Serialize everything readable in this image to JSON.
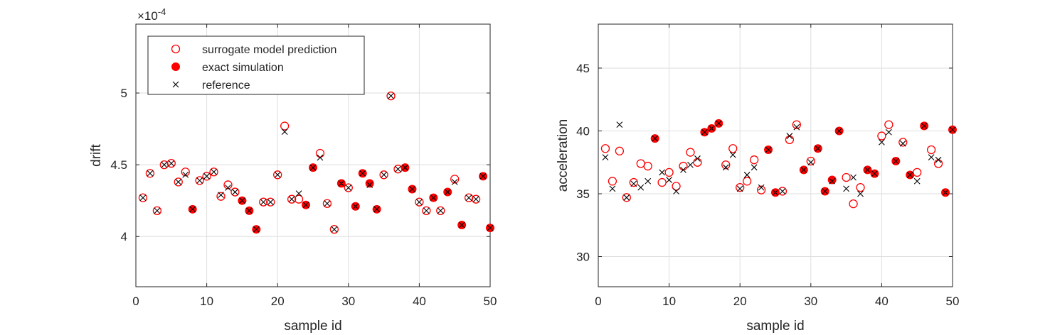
{
  "chart_data": [
    {
      "type": "scatter",
      "xlabel": "sample id",
      "ylabel": "drift",
      "exponent_label": "×10",
      "exponent_power": "-4",
      "xlim": [
        0,
        50
      ],
      "ylim": [
        3.65,
        5.48
      ],
      "xticks": [
        0,
        10,
        20,
        30,
        40,
        50
      ],
      "yticks": [
        4,
        4.5,
        5
      ],
      "ytick_labels": [
        "4",
        "4.5",
        "5"
      ],
      "grid": true,
      "legend_position": "top-left",
      "legend": [
        "surrogate model prediction",
        "exact simulation",
        "reference"
      ],
      "series": [
        {
          "name": "surrogate model prediction",
          "marker": "open-circle",
          "points": [
            [
              1,
              4.27
            ],
            [
              2,
              4.44
            ],
            [
              3,
              4.18
            ],
            [
              4,
              4.5
            ],
            [
              5,
              4.51
            ],
            [
              6,
              4.38
            ],
            [
              7,
              4.45
            ],
            [
              9,
              4.39
            ],
            [
              10,
              4.42
            ],
            [
              11,
              4.45
            ],
            [
              12,
              4.28
            ],
            [
              13,
              4.36
            ],
            [
              14,
              4.31
            ],
            [
              18,
              4.24
            ],
            [
              19,
              4.24
            ],
            [
              20,
              4.43
            ],
            [
              21,
              4.77
            ],
            [
              22,
              4.26
            ],
            [
              23,
              4.26
            ],
            [
              26,
              4.58
            ],
            [
              27,
              4.23
            ],
            [
              28,
              4.05
            ],
            [
              30,
              4.34
            ],
            [
              35,
              4.43
            ],
            [
              36,
              4.98
            ],
            [
              37,
              4.47
            ],
            [
              40,
              4.24
            ],
            [
              41,
              4.18
            ],
            [
              43,
              4.18
            ],
            [
              45,
              4.4
            ],
            [
              47,
              4.27
            ],
            [
              48,
              4.26
            ]
          ]
        },
        {
          "name": "exact simulation",
          "marker": "filled-circle",
          "points": [
            [
              8,
              4.19
            ],
            [
              15,
              4.25
            ],
            [
              16,
              4.18
            ],
            [
              17,
              4.05
            ],
            [
              24,
              4.22
            ],
            [
              25,
              4.48
            ],
            [
              29,
              4.37
            ],
            [
              31,
              4.21
            ],
            [
              32,
              4.44
            ],
            [
              33,
              4.37
            ],
            [
              34,
              4.19
            ],
            [
              38,
              4.48
            ],
            [
              39,
              4.33
            ],
            [
              42,
              4.27
            ],
            [
              44,
              4.31
            ],
            [
              46,
              4.08
            ],
            [
              49,
              4.42
            ],
            [
              50,
              4.06
            ]
          ]
        },
        {
          "name": "reference",
          "marker": "x",
          "points": [
            [
              1,
              4.27
            ],
            [
              2,
              4.44
            ],
            [
              3,
              4.18
            ],
            [
              4,
              4.5
            ],
            [
              5,
              4.51
            ],
            [
              6,
              4.38
            ],
            [
              7,
              4.43
            ],
            [
              8,
              4.19
            ],
            [
              9,
              4.39
            ],
            [
              10,
              4.42
            ],
            [
              11,
              4.45
            ],
            [
              12,
              4.29
            ],
            [
              13,
              4.34
            ],
            [
              14,
              4.31
            ],
            [
              15,
              4.25
            ],
            [
              16,
              4.18
            ],
            [
              17,
              4.05
            ],
            [
              18,
              4.24
            ],
            [
              19,
              4.24
            ],
            [
              20,
              4.43
            ],
            [
              21,
              4.73
            ],
            [
              22,
              4.26
            ],
            [
              23,
              4.3
            ],
            [
              24,
              4.22
            ],
            [
              25,
              4.48
            ],
            [
              26,
              4.55
            ],
            [
              27,
              4.23
            ],
            [
              28,
              4.05
            ],
            [
              29,
              4.37
            ],
            [
              30,
              4.34
            ],
            [
              31,
              4.21
            ],
            [
              32,
              4.44
            ],
            [
              33,
              4.36
            ],
            [
              34,
              4.19
            ],
            [
              35,
              4.43
            ],
            [
              36,
              4.98
            ],
            [
              37,
              4.47
            ],
            [
              38,
              4.48
            ],
            [
              39,
              4.33
            ],
            [
              40,
              4.24
            ],
            [
              41,
              4.18
            ],
            [
              42,
              4.27
            ],
            [
              43,
              4.18
            ],
            [
              44,
              4.31
            ],
            [
              45,
              4.38
            ],
            [
              46,
              4.08
            ],
            [
              47,
              4.27
            ],
            [
              48,
              4.26
            ],
            [
              49,
              4.42
            ],
            [
              50,
              4.06
            ]
          ]
        }
      ]
    },
    {
      "type": "scatter",
      "xlabel": "sample id",
      "ylabel": "acceleration",
      "xlim": [
        0,
        50
      ],
      "ylim": [
        27.6,
        48.5
      ],
      "xticks": [
        0,
        10,
        20,
        30,
        40,
        50
      ],
      "yticks": [
        30,
        35,
        40,
        45
      ],
      "ytick_labels": [
        "30",
        "35",
        "40",
        "45"
      ],
      "grid": true,
      "series": [
        {
          "name": "surrogate model prediction",
          "marker": "open-circle",
          "points": [
            [
              1,
              38.6
            ],
            [
              2,
              36.0
            ],
            [
              3,
              38.4
            ],
            [
              4,
              34.7
            ],
            [
              5,
              35.9
            ],
            [
              6,
              37.4
            ],
            [
              7,
              37.2
            ],
            [
              9,
              35.9
            ],
            [
              10,
              36.7
            ],
            [
              11,
              35.6
            ],
            [
              12,
              37.2
            ],
            [
              13,
              38.3
            ],
            [
              14,
              37.5
            ],
            [
              18,
              37.3
            ],
            [
              19,
              38.6
            ],
            [
              20,
              35.5
            ],
            [
              21,
              36.0
            ],
            [
              22,
              37.7
            ],
            [
              23,
              35.3
            ],
            [
              26,
              35.2
            ],
            [
              27,
              39.3
            ],
            [
              28,
              40.5
            ],
            [
              30,
              37.6
            ],
            [
              35,
              36.3
            ],
            [
              36,
              34.2
            ],
            [
              37,
              35.5
            ],
            [
              40,
              39.6
            ],
            [
              41,
              40.5
            ],
            [
              43,
              39.1
            ],
            [
              45,
              36.7
            ],
            [
              47,
              38.5
            ],
            [
              48,
              37.4
            ]
          ]
        },
        {
          "name": "exact simulation",
          "marker": "filled-circle",
          "points": [
            [
              8,
              39.4
            ],
            [
              15,
              39.9
            ],
            [
              16,
              40.2
            ],
            [
              17,
              40.6
            ],
            [
              24,
              38.5
            ],
            [
              25,
              35.1
            ],
            [
              29,
              36.9
            ],
            [
              31,
              38.6
            ],
            [
              32,
              35.2
            ],
            [
              33,
              36.1
            ],
            [
              34,
              40.0
            ],
            [
              38,
              36.9
            ],
            [
              39,
              36.6
            ],
            [
              42,
              37.6
            ],
            [
              44,
              36.5
            ],
            [
              46,
              40.4
            ],
            [
              49,
              35.1
            ],
            [
              50,
              40.1
            ]
          ]
        },
        {
          "name": "reference",
          "marker": "x",
          "points": [
            [
              1,
              37.9
            ],
            [
              2,
              35.4
            ],
            [
              3,
              40.5
            ],
            [
              4,
              34.7
            ],
            [
              5,
              35.8
            ],
            [
              6,
              35.5
            ],
            [
              7,
              36.0
            ],
            [
              8,
              39.4
            ],
            [
              9,
              36.7
            ],
            [
              10,
              36.1
            ],
            [
              11,
              35.2
            ],
            [
              12,
              36.9
            ],
            [
              13,
              37.3
            ],
            [
              14,
              37.8
            ],
            [
              15,
              39.9
            ],
            [
              16,
              40.2
            ],
            [
              17,
              40.6
            ],
            [
              18,
              37.1
            ],
            [
              19,
              38.1
            ],
            [
              20,
              35.4
            ],
            [
              21,
              36.5
            ],
            [
              22,
              37.1
            ],
            [
              23,
              35.5
            ],
            [
              24,
              38.5
            ],
            [
              25,
              35.1
            ],
            [
              26,
              35.2
            ],
            [
              27,
              39.6
            ],
            [
              28,
              40.3
            ],
            [
              29,
              36.9
            ],
            [
              30,
              37.5
            ],
            [
              31,
              38.6
            ],
            [
              32,
              35.2
            ],
            [
              33,
              36.0
            ],
            [
              34,
              40.0
            ],
            [
              35,
              35.4
            ],
            [
              36,
              36.3
            ],
            [
              37,
              35.0
            ],
            [
              38,
              36.9
            ],
            [
              39,
              36.6
            ],
            [
              40,
              39.1
            ],
            [
              41,
              39.9
            ],
            [
              42,
              37.6
            ],
            [
              43,
              39.0
            ],
            [
              44,
              36.5
            ],
            [
              45,
              36.0
            ],
            [
              46,
              40.4
            ],
            [
              47,
              37.9
            ],
            [
              48,
              37.7
            ],
            [
              49,
              35.1
            ],
            [
              50,
              40.1
            ]
          ]
        }
      ]
    }
  ]
}
